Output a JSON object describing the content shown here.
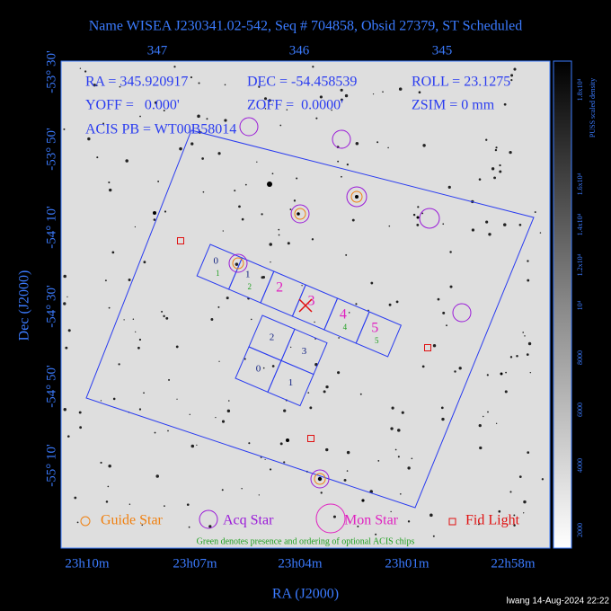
{
  "title": "Name WISEA J230341.02-542, Seq # 704858, Obsid 27379, ST Scheduled",
  "top_axis": {
    "ticks": [
      "347",
      "346",
      "345"
    ]
  },
  "left_axis": {
    "label": "Dec (J2000)",
    "ticks": [
      "-53° 30'",
      "-53° 50'",
      "-54° 10'",
      "-54° 30'",
      "-54° 50'",
      "-55° 10'"
    ]
  },
  "bottom_axis": {
    "label": "RA (J2000)",
    "ticks": [
      "23h10m",
      "23h07m",
      "23h04m",
      "23h01m",
      "22h58m"
    ]
  },
  "info": {
    "ra": "RA = 345.920917",
    "dec": "DEC = -54.458539",
    "roll": "ROLL = 23.1275",
    "yoff": "YOFF =   0.000'",
    "zoff": "ZOFF =  0.0000'",
    "zsim": "ZSIM = 0 mm",
    "acis_pb": "ACIS PB = WT00B58014"
  },
  "acis_s_chips": [
    "0",
    "1",
    "2",
    "3",
    "4",
    "5"
  ],
  "acis_s_optional": [
    "1",
    "2",
    "4",
    "5"
  ],
  "acis_i_chips": [
    "2",
    "3",
    "0",
    "1"
  ],
  "legend": [
    "Guide Star",
    "Acq Star",
    "Mon Star",
    "Fid Light"
  ],
  "note": "Green denotes presence and ordering of optional ACIS chips",
  "colorbar": {
    "title": "PUSS scaled density",
    "labels": [
      "2000",
      "4000",
      "6000",
      "8000",
      "10⁴",
      "1.2x10⁴",
      "1.4x10⁴",
      "1.6x10⁴",
      "1.8x10⁴"
    ]
  },
  "footer": "lwang 14-Aug-2024 22:22"
}
